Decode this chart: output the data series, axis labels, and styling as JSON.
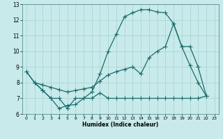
{
  "xlabel": "Humidex (Indice chaleur)",
  "background_color": "#c8eaea",
  "grid_color": "#a8d0d0",
  "line_color": "#1a6b6b",
  "xlim": [
    -0.5,
    23.5
  ],
  "ylim": [
    6,
    13
  ],
  "xticks": [
    0,
    1,
    2,
    3,
    4,
    5,
    6,
    7,
    8,
    9,
    10,
    11,
    12,
    13,
    14,
    15,
    16,
    17,
    18,
    19,
    20,
    21,
    22,
    23
  ],
  "yticks": [
    6,
    7,
    8,
    9,
    10,
    11,
    12,
    13
  ],
  "curve1_x": [
    0,
    1,
    2,
    3,
    4,
    5,
    6,
    7,
    8,
    9,
    10,
    11,
    12,
    13,
    14,
    15,
    16,
    17,
    18,
    19,
    20,
    21,
    22
  ],
  "curve1_y": [
    8.7,
    8.0,
    7.5,
    7.0,
    6.35,
    6.55,
    6.6,
    7.0,
    7.4,
    8.55,
    10.0,
    11.1,
    12.2,
    12.45,
    12.65,
    12.65,
    12.5,
    12.45,
    11.75,
    10.3,
    9.1,
    8.0,
    7.15
  ],
  "curve2_x": [
    0,
    1,
    2,
    3,
    4,
    5,
    6,
    7,
    8,
    9,
    10,
    11,
    12,
    13,
    14,
    15,
    16,
    17,
    18,
    19,
    20,
    21,
    22
  ],
  "curve2_y": [
    8.7,
    8.0,
    7.85,
    7.7,
    7.55,
    7.4,
    7.5,
    7.6,
    7.7,
    8.1,
    8.5,
    8.7,
    8.85,
    9.0,
    8.55,
    9.6,
    10.0,
    10.3,
    11.75,
    10.3,
    10.3,
    9.0,
    7.15
  ],
  "curve3_x": [
    1,
    2,
    3,
    4,
    5,
    6,
    7,
    8,
    9,
    10,
    11,
    12,
    13,
    14,
    15,
    16,
    17,
    18,
    19,
    20,
    21,
    22
  ],
  "curve3_y": [
    8.0,
    7.5,
    7.0,
    7.0,
    6.35,
    7.0,
    7.0,
    7.0,
    7.35,
    7.0,
    7.0,
    7.0,
    7.0,
    7.0,
    7.0,
    7.0,
    7.0,
    7.0,
    7.0,
    7.0,
    7.0,
    7.15
  ]
}
